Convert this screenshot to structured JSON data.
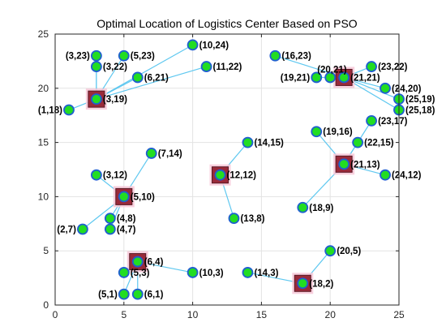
{
  "chart_data": {
    "type": "scatter",
    "title": "Optimal Location of Logistics Center Based on PSO",
    "xlabel": "",
    "ylabel": "",
    "xlim": [
      0,
      25
    ],
    "ylim": [
      0,
      25
    ],
    "xticks": [
      0,
      5,
      10,
      15,
      20,
      25
    ],
    "yticks": [
      0,
      5,
      10,
      15,
      20,
      25
    ],
    "grid": true,
    "colors": {
      "point_fill": "#22dd22",
      "point_edge": "#1f5fd0",
      "link": "#5fc8f0",
      "center_fill": "#9a2a3a",
      "center_glow": "#f7c8d8",
      "center_inner": "#1f6fa0"
    },
    "centers": [
      {
        "x": 3,
        "y": 19
      },
      {
        "x": 21,
        "y": 21
      },
      {
        "x": 12,
        "y": 12
      },
      {
        "x": 21,
        "y": 13
      },
      {
        "x": 5,
        "y": 10
      },
      {
        "x": 6,
        "y": 4
      },
      {
        "x": 18,
        "y": 2
      }
    ],
    "points": [
      {
        "x": 3,
        "y": 23,
        "label": "(3,23)"
      },
      {
        "x": 5,
        "y": 23,
        "label": "(5,23)"
      },
      {
        "x": 10,
        "y": 24,
        "label": "(10,24)"
      },
      {
        "x": 16,
        "y": 23,
        "label": "(16,23)"
      },
      {
        "x": 3,
        "y": 22,
        "label": "(3,22)"
      },
      {
        "x": 11,
        "y": 22,
        "label": "(11,22)"
      },
      {
        "x": 6,
        "y": 21,
        "label": "(6,21)"
      },
      {
        "x": 20,
        "y": 21,
        "label": "(20,21)"
      },
      {
        "x": 23,
        "y": 22,
        "label": "(23,22)"
      },
      {
        "x": 19,
        "y": 21,
        "label": "(19,21)"
      },
      {
        "x": 21,
        "y": 21,
        "label": "(21,21)"
      },
      {
        "x": 24,
        "y": 20,
        "label": "(24,20)"
      },
      {
        "x": 3,
        "y": 19,
        "label": "(3,19)"
      },
      {
        "x": 25,
        "y": 19,
        "label": "(25,19)"
      },
      {
        "x": 1,
        "y": 18,
        "label": "(1,18)"
      },
      {
        "x": 25,
        "y": 18,
        "label": "(25,18)"
      },
      {
        "x": 23,
        "y": 17,
        "label": "(23,17)"
      },
      {
        "x": 19,
        "y": 16,
        "label": "(19,16)"
      },
      {
        "x": 22,
        "y": 15,
        "label": "(22,15)"
      },
      {
        "x": 14,
        "y": 15,
        "label": "(14,15)"
      },
      {
        "x": 7,
        "y": 14,
        "label": "(7,14)"
      },
      {
        "x": 21,
        "y": 13,
        "label": "(21,13)"
      },
      {
        "x": 3,
        "y": 12,
        "label": "(3,12)"
      },
      {
        "x": 12,
        "y": 12,
        "label": "(12,12)"
      },
      {
        "x": 24,
        "y": 12,
        "label": "(24,12)"
      },
      {
        "x": 5,
        "y": 10,
        "label": "(5,10)"
      },
      {
        "x": 18,
        "y": 9,
        "label": "(18,9)"
      },
      {
        "x": 4,
        "y": 8,
        "label": "(4,8)"
      },
      {
        "x": 13,
        "y": 8,
        "label": "(13,8)"
      },
      {
        "x": 2,
        "y": 7,
        "label": "(2,7)"
      },
      {
        "x": 4,
        "y": 7,
        "label": "(4,7)"
      },
      {
        "x": 20,
        "y": 5,
        "label": "(20,5)"
      },
      {
        "x": 6,
        "y": 4,
        "label": "(6,4)"
      },
      {
        "x": 5,
        "y": 3,
        "label": "(5,3)"
      },
      {
        "x": 10,
        "y": 3,
        "label": "(10,3)"
      },
      {
        "x": 14,
        "y": 3,
        "label": "(14,3)"
      },
      {
        "x": 18,
        "y": 2,
        "label": "(18,2)"
      },
      {
        "x": 5,
        "y": 1,
        "label": "(5,1)"
      },
      {
        "x": 6,
        "y": 1,
        "label": "(6,1)"
      }
    ],
    "links": [
      {
        "from": [
          3,
          19
        ],
        "to": [
          3,
          23
        ]
      },
      {
        "from": [
          3,
          19
        ],
        "to": [
          5,
          23
        ]
      },
      {
        "from": [
          3,
          19
        ],
        "to": [
          10,
          24
        ]
      },
      {
        "from": [
          3,
          19
        ],
        "to": [
          3,
          22
        ]
      },
      {
        "from": [
          3,
          19
        ],
        "to": [
          11,
          22
        ]
      },
      {
        "from": [
          3,
          19
        ],
        "to": [
          6,
          21
        ]
      },
      {
        "from": [
          3,
          19
        ],
        "to": [
          1,
          18
        ]
      },
      {
        "from": [
          21,
          21
        ],
        "to": [
          16,
          23
        ]
      },
      {
        "from": [
          21,
          21
        ],
        "to": [
          20,
          21
        ]
      },
      {
        "from": [
          21,
          21
        ],
        "to": [
          19,
          21
        ]
      },
      {
        "from": [
          21,
          21
        ],
        "to": [
          23,
          22
        ]
      },
      {
        "from": [
          21,
          21
        ],
        "to": [
          24,
          20
        ]
      },
      {
        "from": [
          21,
          21
        ],
        "to": [
          25,
          19
        ]
      },
      {
        "from": [
          21,
          21
        ],
        "to": [
          25,
          18
        ]
      },
      {
        "from": [
          12,
          12
        ],
        "to": [
          14,
          15
        ]
      },
      {
        "from": [
          12,
          12
        ],
        "to": [
          13,
          8
        ]
      },
      {
        "from": [
          21,
          13
        ],
        "to": [
          19,
          16
        ]
      },
      {
        "from": [
          21,
          13
        ],
        "to": [
          22,
          15
        ]
      },
      {
        "from": [
          21,
          13
        ],
        "to": [
          23,
          17
        ]
      },
      {
        "from": [
          21,
          13
        ],
        "to": [
          24,
          12
        ]
      },
      {
        "from": [
          21,
          13
        ],
        "to": [
          18,
          9
        ]
      },
      {
        "from": [
          5,
          10
        ],
        "to": [
          7,
          14
        ]
      },
      {
        "from": [
          5,
          10
        ],
        "to": [
          3,
          12
        ]
      },
      {
        "from": [
          5,
          10
        ],
        "to": [
          4,
          8
        ]
      },
      {
        "from": [
          5,
          10
        ],
        "to": [
          4,
          7
        ]
      },
      {
        "from": [
          5,
          10
        ],
        "to": [
          2,
          7
        ]
      },
      {
        "from": [
          6,
          4
        ],
        "to": [
          5,
          3
        ]
      },
      {
        "from": [
          6,
          4
        ],
        "to": [
          10,
          3
        ]
      },
      {
        "from": [
          6,
          4
        ],
        "to": [
          5,
          1
        ]
      },
      {
        "from": [
          6,
          4
        ],
        "to": [
          6,
          1
        ]
      },
      {
        "from": [
          18,
          2
        ],
        "to": [
          14,
          3
        ]
      },
      {
        "from": [
          18,
          2
        ],
        "to": [
          20,
          5
        ]
      }
    ]
  }
}
